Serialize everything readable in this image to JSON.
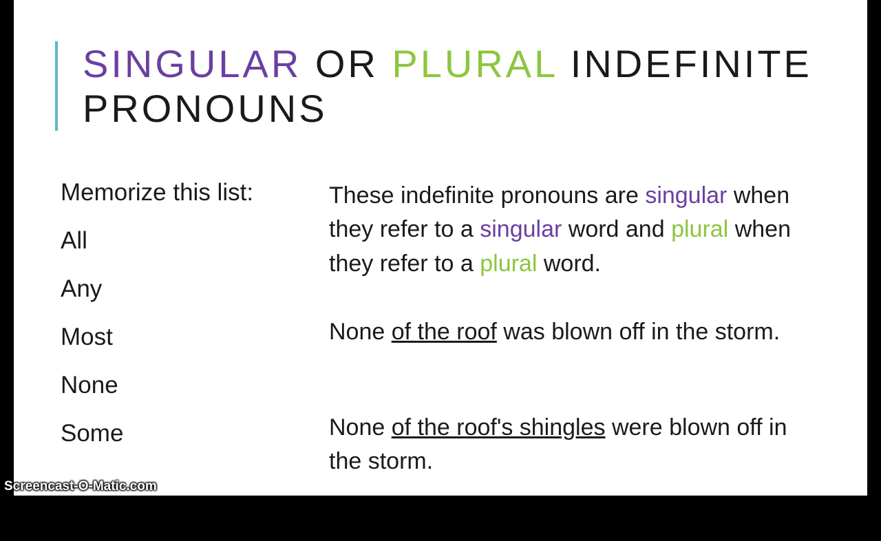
{
  "title": {
    "word_singular": "SINGULAR",
    "word_or": " OR ",
    "word_plural": "PLURAL",
    "word_rest": " INDEFINITE PRONOUNS"
  },
  "colors": {
    "singular": "#6b3fa0",
    "plural": "#8cc63f",
    "accent_bar": "#5bb8c8",
    "text": "#1a1a1a",
    "background": "#ffffff",
    "outer_background": "#000000"
  },
  "typography": {
    "title_fontsize": 56,
    "title_letter_spacing": 4,
    "body_fontsize": 34,
    "list_fontsize": 35,
    "font_family": "Century Gothic"
  },
  "left": {
    "heading": "Memorize this list:",
    "items": [
      "All",
      "Any",
      "Most",
      "None",
      "Some"
    ]
  },
  "body": {
    "p1_a": "These indefinite pronouns are ",
    "p1_s1": "singular",
    "p1_b": " when they refer to a ",
    "p1_s2": "singular",
    "p1_c": " word and ",
    "p1_p1": "plural",
    "p1_d": " when they refer to a ",
    "p1_p2": "plural",
    "p1_e": " word."
  },
  "example1": {
    "pre": "None ",
    "underlined": "of the roof",
    "post": " was blown off in the storm."
  },
  "example2": {
    "pre": "None ",
    "underlined": "of the roof's shingles",
    "post": " were blown off in the storm."
  },
  "watermark": "Screencast-O-Matic.com"
}
